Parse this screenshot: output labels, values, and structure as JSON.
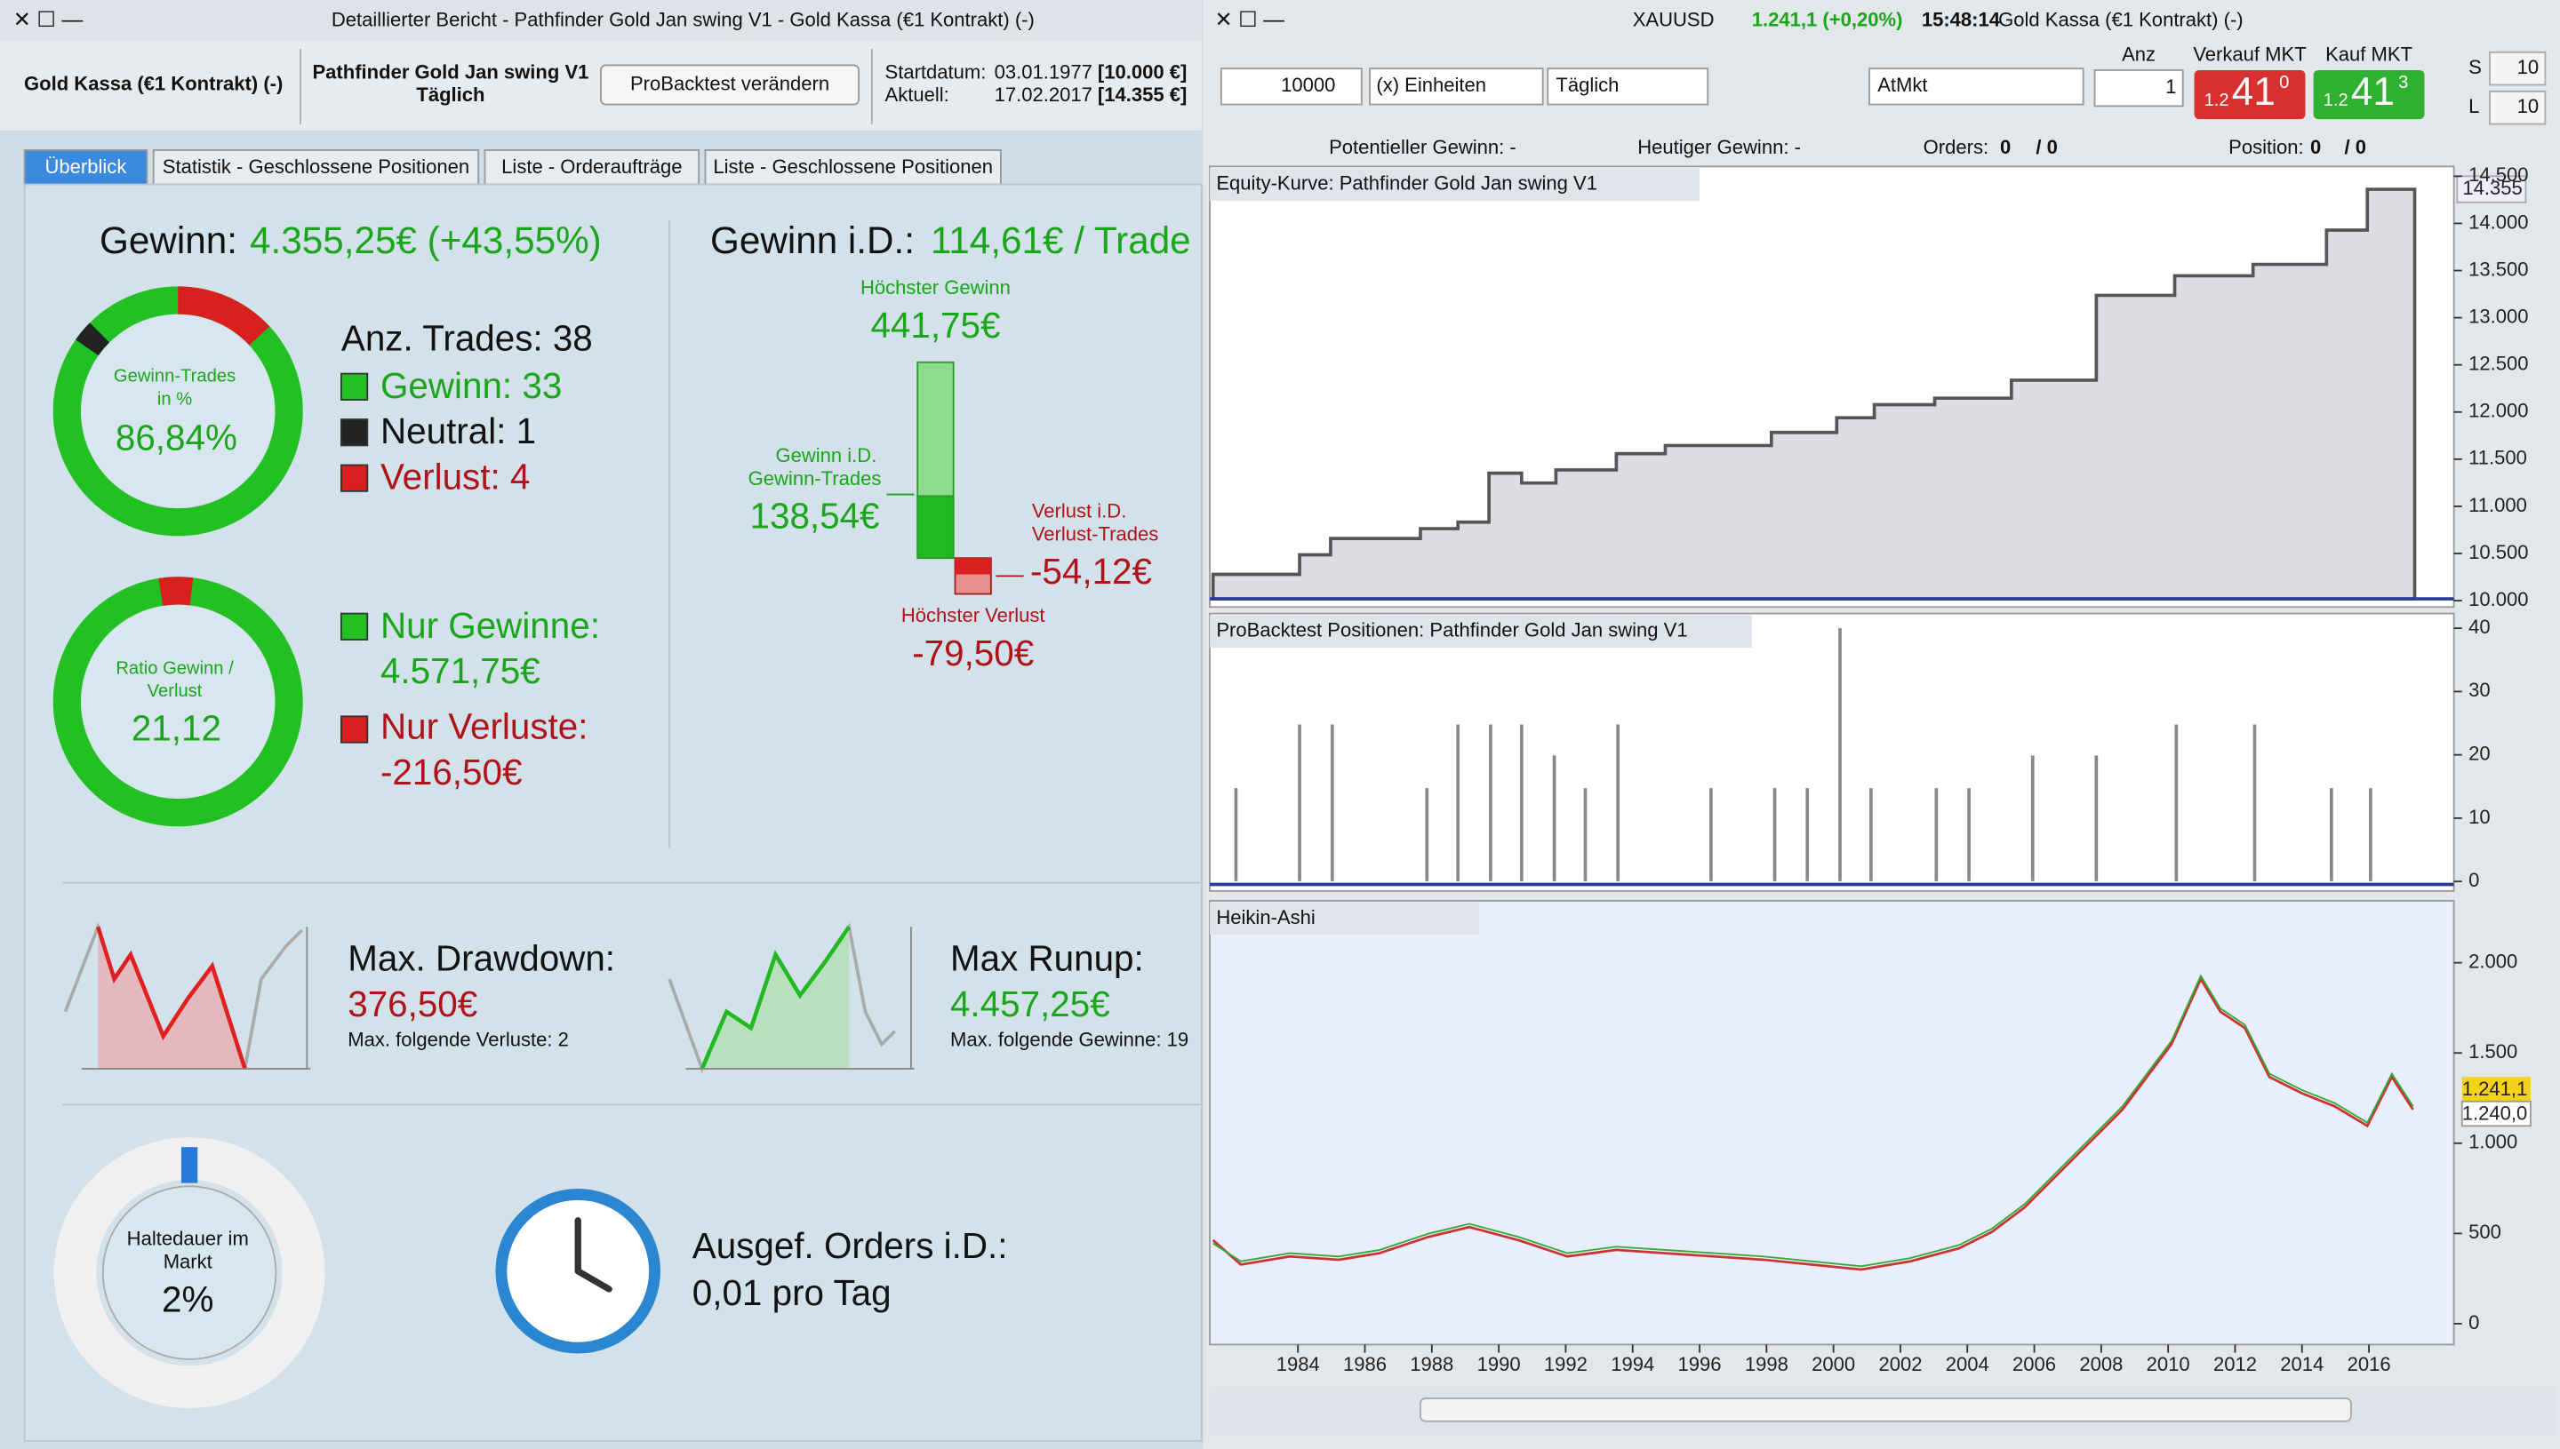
{
  "left": {
    "title": "Detaillierter Bericht - Pathfinder Gold Jan swing V1 - Gold Kassa (€1 Kontrakt) (-)",
    "instrument": "Gold Kassa (€1 Kontrakt) (-)",
    "system": "Pathfinder Gold Jan swing V1",
    "period": "Täglich",
    "button": "ProBacktest verändern",
    "start_label": "Startdatum:",
    "start_date": "03.01.1977",
    "start_value": "[10.000 €]",
    "current_label": "Aktuell:",
    "current_date": "17.02.2017",
    "current_value": "[14.355 €]",
    "tabs": [
      "Überblick",
      "Statistik - Geschlossene Positionen",
      "Liste - Orderaufträge",
      "Liste - Geschlossene Positionen"
    ],
    "gewinn_label": "Gewinn:",
    "gewinn_value": "4.355,25€ (+43,55%)",
    "gewinn_id_label": "Gewinn i.D.:",
    "gewinn_id_value": "114,61€ / Trade",
    "donut1": {
      "label_1": "Gewinn-Trades",
      "label_2": "in %",
      "value": "86,84%"
    },
    "trades": {
      "total": "Anz. Trades: 38",
      "win": "Gewinn: 33",
      "neutral": "Neutral: 1",
      "loss": "Verlust: 4"
    },
    "donut2": {
      "label_1": "Ratio Gewinn /",
      "label_2": "Verlust",
      "value": "21,12"
    },
    "nur_gewinne_label": "Nur Gewinne:",
    "nur_gewinne": "4.571,75€",
    "nur_verluste_label": "Nur Verluste:",
    "nur_verluste": "-216,50€",
    "bar": {
      "max_win_label": "Höchster Gewinn",
      "max_win": "441,75€",
      "avg_win_label_1": "Gewinn i.D.",
      "avg_win_label_2": "Gewinn-Trades",
      "avg_win": "138,54€",
      "avg_loss_label_1": "Verlust i.D.",
      "avg_loss_label_2": "Verlust-Trades",
      "avg_loss": "-54,12€",
      "max_loss_label": "Höchster Verlust",
      "max_loss": "-79,50€"
    },
    "drawdown": {
      "label": "Max. Drawdown:",
      "value": "376,50€",
      "note": "Max. folgende Verluste: 2"
    },
    "runup": {
      "label": "Max Runup:",
      "value": "4.457,25€",
      "note": "Max. folgende Gewinne: 19"
    },
    "halte": {
      "label_1": "Haltedauer im",
      "label_2": "Markt",
      "value": "2%"
    },
    "orders": {
      "label": "Ausgef. Orders i.D.:",
      "value": "0,01 pro Tag"
    }
  },
  "right": {
    "symbol": "XAUUSD",
    "price": "1.241,1 (+0,20%)",
    "time": "15:48:14",
    "name": "Gold Kassa (€1 Kontrakt) (-)",
    "qty": "10000",
    "units": "(x) Einheiten",
    "period": "Täglich",
    "order_type": "AtMkt",
    "anz_label": "Anz",
    "anz": "1",
    "sell_label": "Verkauf MKT",
    "buy_label": "Kauf MKT",
    "sell_small": "1.2",
    "sell_big": "41",
    "sell_sup": "0",
    "buy_small": "1.2",
    "buy_big": "41",
    "buy_sup": "3",
    "s_label": "S",
    "l_label": "L",
    "s_value": "10",
    "l_value": "10",
    "pot_gewinn": "Potentieller Gewinn: -",
    "heut_gewinn": "Heutiger Gewinn: -",
    "orders_label": "Orders:",
    "orders_a": "0",
    "orders_b": "/ 0",
    "position_label": "Position:",
    "position_a": "0",
    "position_b": "/ 0",
    "equity_title": "Equity-Kurve: Pathfinder Gold Jan swing V1",
    "equity_ticks": [
      "14.500",
      "14.000",
      "13.500",
      "13.000",
      "12.500",
      "12.000",
      "11.500",
      "11.000",
      "10.500",
      "10.000"
    ],
    "equity_current": "14.355",
    "positions_title": "ProBacktest Positionen: Pathfinder Gold Jan swing V1",
    "positions_ticks": [
      "40",
      "30",
      "20",
      "10",
      "0"
    ],
    "price_title": "Heikin-Ashi",
    "price_ticks": [
      "2.000",
      "1.500",
      "1.000",
      "500",
      "0"
    ],
    "price_last": "1.241,1",
    "price_prev": "1.240,0",
    "years": [
      "1984",
      "1986",
      "1988",
      "1990",
      "1992",
      "1994",
      "1996",
      "1998",
      "2000",
      "2002",
      "2004",
      "2006",
      "2008",
      "2010",
      "2012",
      "2014",
      "2016"
    ]
  }
}
